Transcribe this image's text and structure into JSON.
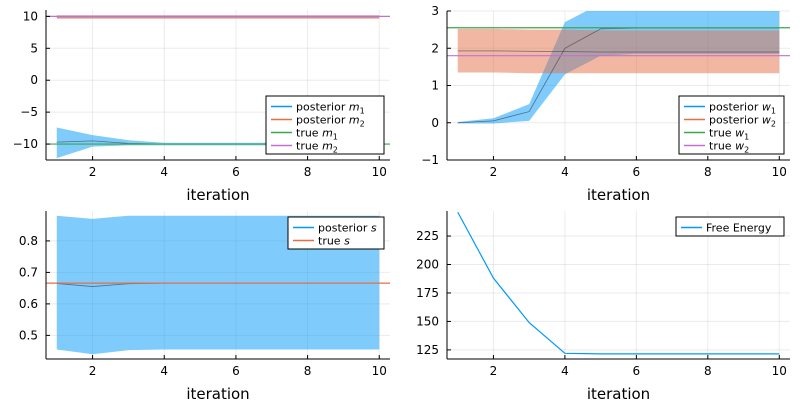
{
  "chart_data": [
    {
      "type": "line",
      "xlabel": "iteration",
      "xlim": [
        0.7,
        10.3
      ],
      "ylim": [
        -12.5,
        11.0
      ],
      "xticks": [
        2,
        4,
        6,
        8,
        10
      ],
      "yticks": [
        -10,
        -5,
        0,
        5,
        10
      ],
      "ytick_labels": [
        "−10",
        "−5",
        "0",
        "5",
        "10"
      ],
      "grid": true,
      "legend_position": "bottom-right",
      "series": [
        {
          "name": "posterior m_1",
          "color": "#009AFA",
          "x": [
            1,
            2,
            3,
            4,
            5,
            6,
            7,
            8,
            9,
            10
          ],
          "y": [
            -9.7,
            -9.5,
            -9.9,
            -10,
            -10,
            -10,
            -10,
            -10,
            -10,
            -10
          ],
          "band_lower": [
            -12.2,
            -10.4,
            -10.2,
            -10.2,
            -10.2,
            -10.2,
            -10.2,
            -10.2,
            -10.2,
            -10.2
          ],
          "band_upper": [
            -7.4,
            -8.6,
            -9.4,
            -9.8,
            -9.8,
            -9.8,
            -9.8,
            -9.8,
            -9.8,
            -9.8
          ]
        },
        {
          "name": "posterior m_2",
          "color": "#E36F47",
          "x": [
            1,
            2,
            3,
            4,
            5,
            6,
            7,
            8,
            9,
            10
          ],
          "y": [
            9.9,
            9.9,
            9.9,
            9.9,
            9.9,
            9.9,
            9.9,
            9.9,
            9.9,
            9.9
          ],
          "band_lower": [
            9.6,
            9.6,
            9.6,
            9.6,
            9.6,
            9.6,
            9.6,
            9.6,
            9.6,
            9.6
          ],
          "band_upper": [
            10.2,
            10.2,
            10.2,
            10.2,
            10.2,
            10.2,
            10.2,
            10.2,
            10.2,
            10.2
          ]
        },
        {
          "name": "true m_1",
          "color": "#3EA44E",
          "hline": -10
        },
        {
          "name": "true m_2",
          "color": "#C271D2",
          "hline": 10
        }
      ]
    },
    {
      "type": "line",
      "xlabel": "iteration",
      "xlim": [
        0.7,
        10.3
      ],
      "ylim": [
        -1,
        3
      ],
      "xticks": [
        2,
        4,
        6,
        8,
        10
      ],
      "yticks": [
        -1,
        0,
        1,
        2,
        3
      ],
      "ytick_labels": [
        "−1",
        "0",
        "1",
        "2",
        "3"
      ],
      "grid": true,
      "legend_position": "bottom-right",
      "series": [
        {
          "name": "posterior w_1",
          "color": "#009AFA",
          "x": [
            1,
            2,
            3,
            4,
            5,
            6,
            7,
            8,
            9,
            10
          ],
          "y": [
            0,
            0.05,
            0.3,
            2.0,
            2.52,
            2.54,
            2.54,
            2.54,
            2.54,
            2.54
          ],
          "band_lower": [
            -0.02,
            -0.02,
            0.05,
            1.3,
            1.8,
            1.85,
            1.85,
            1.85,
            1.85,
            1.85
          ],
          "band_upper": [
            0.02,
            0.12,
            0.5,
            2.7,
            3.2,
            3.2,
            3.2,
            3.2,
            3.2,
            3.2
          ]
        },
        {
          "name": "posterior w_2",
          "color": "#E36F47",
          "x": [
            1,
            2,
            3,
            4,
            5,
            6,
            7,
            8,
            9,
            10
          ],
          "y": [
            1.93,
            1.93,
            1.92,
            1.91,
            1.9,
            1.9,
            1.9,
            1.9,
            1.9,
            1.9
          ],
          "band_lower": [
            1.35,
            1.35,
            1.33,
            1.33,
            1.33,
            1.33,
            1.33,
            1.33,
            1.33,
            1.33
          ],
          "band_upper": [
            2.52,
            2.52,
            2.5,
            2.5,
            2.48,
            2.48,
            2.48,
            2.48,
            2.48,
            2.48
          ]
        },
        {
          "name": "true w_1",
          "color": "#3EA44E",
          "hline": 2.55
        },
        {
          "name": "true w_2",
          "color": "#C271D2",
          "hline": 1.8
        }
      ]
    },
    {
      "type": "line",
      "xlabel": "iteration",
      "xlim": [
        0.7,
        10.3
      ],
      "ylim": [
        0.425,
        0.895
      ],
      "xticks": [
        2,
        4,
        6,
        8,
        10
      ],
      "yticks": [
        0.5,
        0.6,
        0.7,
        0.8
      ],
      "ytick_labels": [
        "0.5",
        "0.6",
        "0.7",
        "0.8"
      ],
      "grid": true,
      "legend_position": "top-right",
      "series": [
        {
          "name": "posterior s",
          "color": "#009AFA",
          "x": [
            1,
            2,
            3,
            4,
            5,
            6,
            7,
            8,
            9,
            10
          ],
          "y": [
            0.665,
            0.655,
            0.664,
            0.666,
            0.666,
            0.666,
            0.666,
            0.666,
            0.666,
            0.666
          ],
          "band_lower": [
            0.455,
            0.44,
            0.453,
            0.455,
            0.455,
            0.455,
            0.455,
            0.455,
            0.455,
            0.455
          ],
          "band_upper": [
            0.88,
            0.87,
            0.88,
            0.88,
            0.88,
            0.88,
            0.88,
            0.88,
            0.88,
            0.88
          ]
        },
        {
          "name": "true s",
          "color": "#E36F47",
          "hline": 0.666
        }
      ]
    },
    {
      "type": "line",
      "xlabel": "iteration",
      "xlim": [
        0.7,
        10.3
      ],
      "ylim": [
        117,
        247
      ],
      "xticks": [
        2,
        4,
        6,
        8,
        10
      ],
      "yticks": [
        125,
        150,
        175,
        200,
        225
      ],
      "ytick_labels": [
        "125",
        "150",
        "175",
        "200",
        "225"
      ],
      "grid": true,
      "legend_position": "top-right",
      "series": [
        {
          "name": "Free Energy",
          "color": "#009AFA",
          "x": [
            1,
            2,
            3,
            4,
            5,
            6,
            7,
            8,
            9,
            10
          ],
          "y": [
            246,
            188,
            149,
            122,
            121.5,
            121.5,
            121.5,
            121.5,
            121.5,
            121.5
          ]
        }
      ]
    }
  ]
}
